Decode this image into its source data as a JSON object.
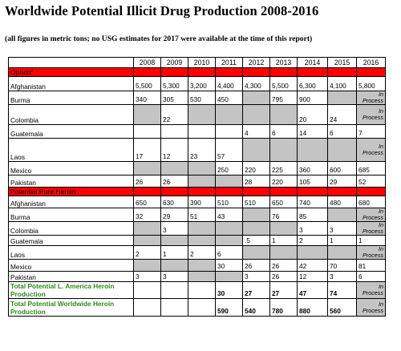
{
  "title": "Worldwide Potential Illicit Drug Production  2008-2016",
  "subtitle": "(all figures in metric tons; no USG estimates for 2017 were available at the time of this report)",
  "years": [
    "2008",
    "2009",
    "2010",
    "2011",
    "2012",
    "2013",
    "2014",
    "2015",
    "2016"
  ],
  "in_process": [
    "In",
    "Process"
  ],
  "rows": [
    {
      "type": "section",
      "label": "Opium*"
    },
    {
      "label": "Afghanistan",
      "values": [
        "5,500",
        "5,300",
        "3,200",
        "4,400",
        "4,300",
        "5,500",
        "6,300",
        "4,100",
        "5,800"
      ],
      "gray": [
        false,
        false,
        false,
        false,
        false,
        false,
        false,
        false,
        false
      ]
    },
    {
      "label": "Burma",
      "values": [
        "340",
        "305",
        "530",
        "450",
        "",
        "795",
        "900",
        "",
        "IP"
      ],
      "gray": [
        false,
        false,
        false,
        false,
        true,
        false,
        false,
        true,
        true
      ]
    },
    {
      "label": "Colombia",
      "values": [
        "",
        "22",
        "",
        "",
        "",
        "",
        "20",
        "24",
        "IP"
      ],
      "gray": [
        true,
        false,
        true,
        true,
        true,
        true,
        false,
        false,
        true
      ]
    },
    {
      "label": "Guatemala",
      "values": [
        "",
        "",
        "",
        "",
        "4",
        "6",
        "14",
        "6",
        "7"
      ],
      "gray": [
        false,
        false,
        false,
        false,
        false,
        false,
        false,
        false,
        false
      ]
    },
    {
      "label": "Laos",
      "values": [
        "17",
        "12",
        "23",
        "57",
        "",
        "",
        "",
        "",
        "IP"
      ],
      "gray": [
        false,
        false,
        false,
        false,
        true,
        true,
        true,
        true,
        true
      ]
    },
    {
      "label": "Mexico",
      "values": [
        "",
        "",
        "",
        "250",
        "220",
        "225",
        "360",
        "600",
        "685"
      ],
      "gray": [
        true,
        true,
        true,
        false,
        false,
        false,
        false,
        false,
        false
      ]
    },
    {
      "label": "Pakistan",
      "values": [
        "26",
        "26",
        "",
        "",
        "28",
        "220",
        "105",
        "29",
        "52"
      ],
      "gray": [
        false,
        false,
        true,
        true,
        false,
        false,
        false,
        false,
        false
      ]
    },
    {
      "type": "section",
      "label": "Potential Pure Heroin"
    },
    {
      "label": "Afghanistan",
      "values": [
        "650",
        "630",
        "390",
        "510",
        "510",
        "650",
        "740",
        "480",
        "680"
      ],
      "gray": [
        false,
        false,
        false,
        false,
        false,
        false,
        false,
        false,
        false
      ]
    },
    {
      "label": "Burma",
      "values": [
        "32",
        "29",
        "51",
        "43",
        "",
        "76",
        "85",
        "",
        "IP"
      ],
      "gray": [
        false,
        false,
        false,
        false,
        true,
        false,
        false,
        true,
        true
      ]
    },
    {
      "label": "Colombia",
      "values": [
        "",
        "3",
        "",
        "",
        "",
        "",
        "3",
        "3",
        "IP"
      ],
      "gray": [
        true,
        false,
        true,
        true,
        true,
        true,
        false,
        false,
        true
      ]
    },
    {
      "label": "Guatemala",
      "values": [
        "",
        "",
        "",
        "",
        ".5",
        "1",
        "2",
        "1",
        "1"
      ],
      "gray": [
        true,
        true,
        true,
        true,
        false,
        false,
        false,
        false,
        false
      ]
    },
    {
      "label": "Laos",
      "values": [
        "2",
        "1",
        "2",
        "6",
        "",
        "",
        "",
        "",
        "IP"
      ],
      "gray": [
        false,
        false,
        false,
        false,
        true,
        true,
        true,
        true,
        true
      ]
    },
    {
      "label": "Mexico",
      "values": [
        "",
        "",
        "",
        "30",
        "26",
        "26",
        "42",
        "70",
        "81"
      ],
      "gray": [
        true,
        true,
        true,
        false,
        false,
        false,
        false,
        false,
        false
      ]
    },
    {
      "label": "Pakistan",
      "values": [
        "3",
        "3",
        "",
        "",
        "3",
        "26",
        "12",
        "3",
        "6"
      ],
      "gray": [
        false,
        false,
        true,
        true,
        false,
        false,
        false,
        false,
        false
      ]
    },
    {
      "type": "total",
      "label": "Total Potential L. America Heroin Production",
      "values": [
        "",
        "",
        "",
        "30",
        "27",
        "27",
        "47",
        "74",
        "IP"
      ],
      "gray": [
        false,
        false,
        false,
        false,
        false,
        false,
        false,
        false,
        true
      ]
    },
    {
      "type": "total",
      "label": "Total Potential Worldwide Heroin Production",
      "values": [
        "",
        "",
        "",
        "590",
        "540",
        "780",
        "880",
        "560",
        "IP"
      ],
      "gray": [
        false,
        false,
        false,
        false,
        false,
        false,
        false,
        false,
        true
      ]
    }
  ]
}
